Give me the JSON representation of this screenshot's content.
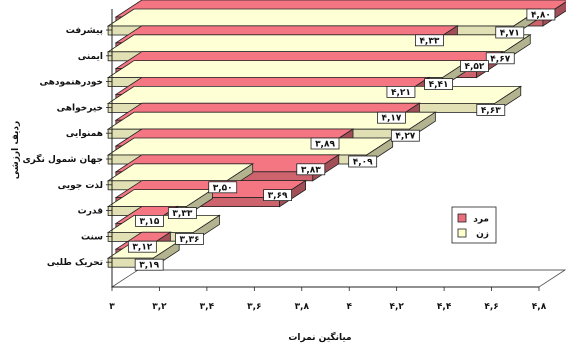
{
  "chart_data": {
    "type": "bar",
    "orientation": "horizontal",
    "three_d": true,
    "categories": [
      "پیشرفت",
      "ایمنی",
      "خودرهنمودهی",
      "خیرخواهی",
      "همنوایی",
      "جهان شمول نگری",
      "لذت جویی",
      "قدرت",
      "سنت",
      "تحریک طلبی"
    ],
    "series": [
      {
        "name": "مرد",
        "color": "#e8707c",
        "values": [
          4.8,
          4.33,
          4.52,
          4.21,
          4.17,
          3.89,
          3.83,
          3.69,
          3.15,
          3.12
        ]
      },
      {
        "name": "زن",
        "color": "#ffffcc",
        "values": [
          4.71,
          4.67,
          4.41,
          4.63,
          4.27,
          4.09,
          3.5,
          3.33,
          3.36,
          3.19
        ]
      }
    ],
    "data_labels": {
      "مرد": [
        "۴,۸۰",
        "۴,۳۳",
        "۴,۵۲",
        "۴,۲۱",
        "۴,۱۷",
        "۳,۸۹",
        "۳,۸۳",
        "۳,۶۹",
        "۳,۱۵",
        "۳,۱۲"
      ],
      "زن": [
        "۴,۷۱",
        "۴,۶۷",
        "۴,۴۱",
        "۴,۶۳",
        "۴,۲۷",
        "۴,۰۹",
        "۳,۵۰",
        "۳,۳۳",
        "۳,۳۶",
        "۳,۱۹"
      ]
    },
    "x_ticks": [
      3,
      3.2,
      3.4,
      3.6,
      3.8,
      4,
      4.2,
      4.4,
      4.6,
      4.8
    ],
    "x_tick_labels": [
      "۳",
      "۳,۲",
      "۳,۴",
      "۳,۶",
      "۳,۸",
      "۴",
      "۴,۲",
      "۴,۴",
      "۴,۶",
      "۴,۸"
    ],
    "xlim": [
      3,
      4.8
    ],
    "xlabel": "میانگین نمرات",
    "ylabel": "ردیف ارزشی",
    "grid": false,
    "legend_position": "right"
  }
}
